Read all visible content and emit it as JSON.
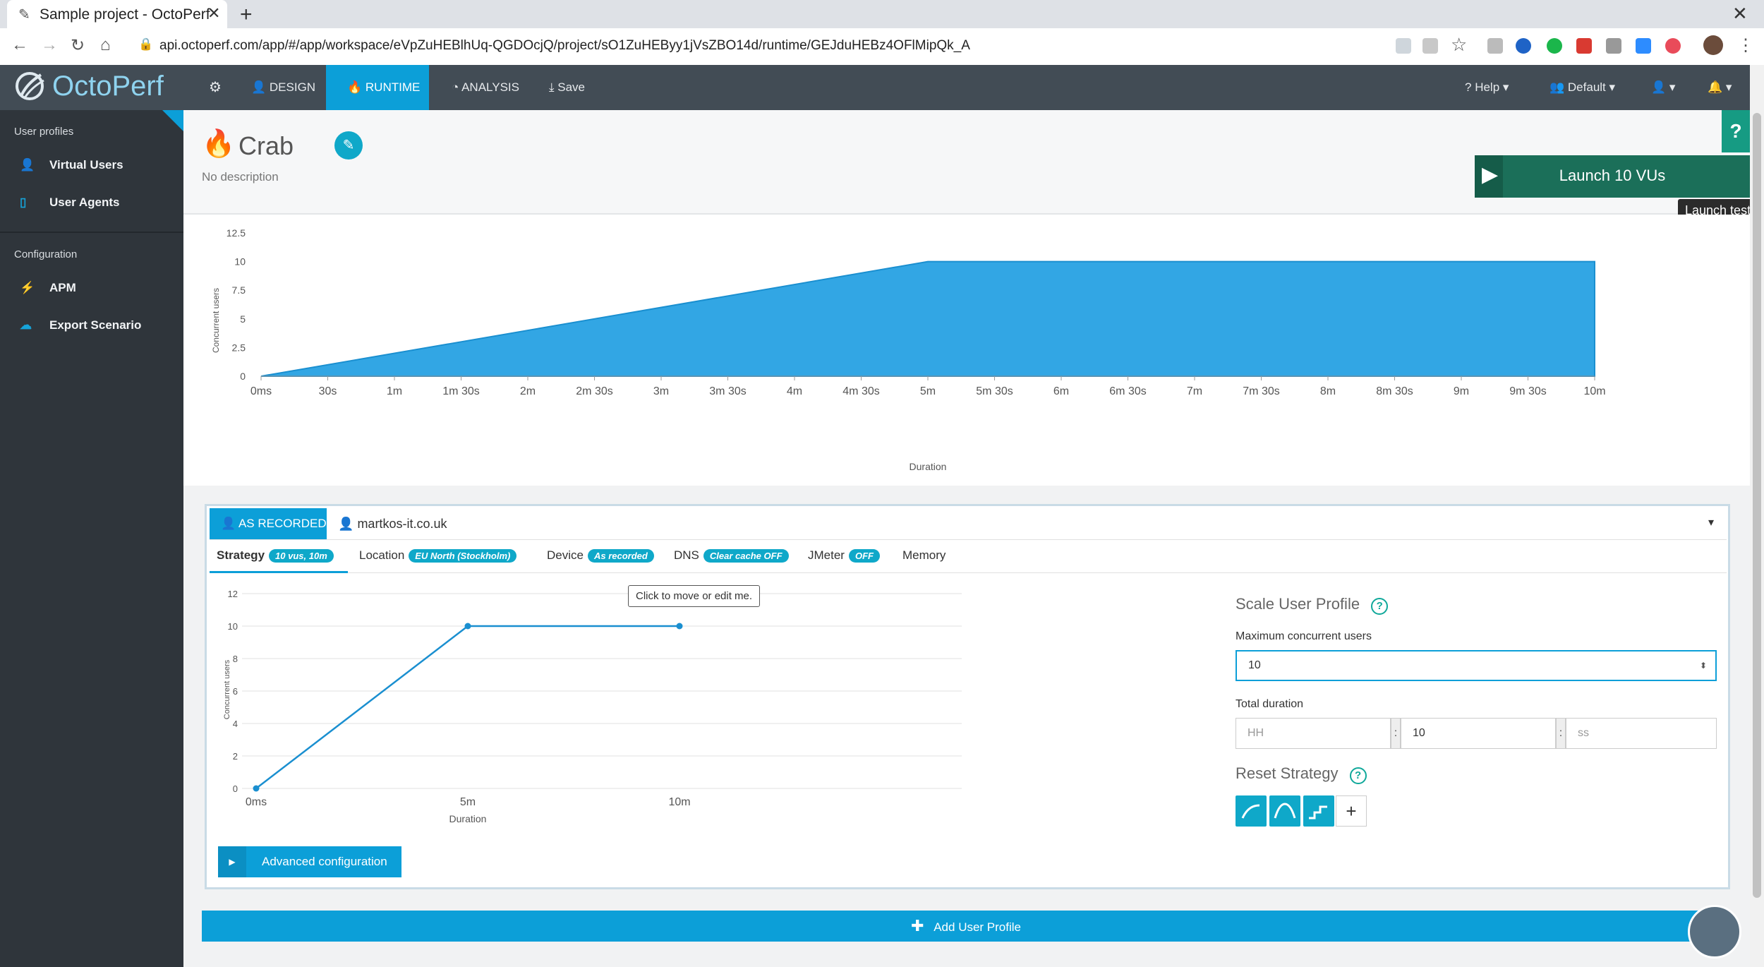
{
  "browser": {
    "tab_title": "Sample project - OctoPerf",
    "url": "api.octoperf.com/app/#/app/workspace/eVpZuHEBlhUq-QGDOcjQ/project/sO1ZuHEByy1jVsZBO14d/runtime/GEJduHEBz4OFlMipQk_A"
  },
  "header": {
    "logo": "OctoPerf",
    "nav": {
      "design": "DESIGN",
      "runtime": "RUNTIME",
      "analysis": "ANALYSIS",
      "save": "Save"
    },
    "right": {
      "help": "Help",
      "workspace": "Default"
    }
  },
  "sidebar": {
    "section1": "User profiles",
    "items1": [
      "Virtual Users",
      "User Agents"
    ],
    "section2": "Configuration",
    "items2": [
      "APM",
      "Export Scenario"
    ]
  },
  "runtime": {
    "name": "Crab",
    "description": "No description",
    "launch_label": "Launch 10 VUs",
    "launch_tooltip": "Launch test",
    "help_icon": "?"
  },
  "chart_top": {
    "ylabel": "Concurrent users",
    "xlabel": "Duration",
    "yticks": [
      "12.5",
      "10",
      "7.5",
      "5",
      "2.5",
      "0"
    ],
    "xticks": [
      "0ms",
      "30s",
      "1m",
      "1m 30s",
      "2m",
      "2m 30s",
      "3m",
      "3m 30s",
      "4m",
      "4m 30s",
      "5m",
      "5m 30s",
      "6m",
      "6m 30s",
      "7m",
      "7m 30s",
      "8m",
      "8m 30s",
      "9m",
      "9m 30s",
      "10m"
    ]
  },
  "profile": {
    "mode": "AS RECORDED",
    "user": "martkos-it.co.uk",
    "tabs": {
      "strategy": "Strategy",
      "strategy_pill": "10 vus, 10m",
      "location": "Location",
      "location_pill": "EU North (Stockholm)",
      "device": "Device",
      "device_pill": "As recorded",
      "dns": "DNS",
      "dns_pill": "Clear cache OFF",
      "jmeter": "JMeter",
      "jmeter_pill": "OFF",
      "memory": "Memory"
    },
    "tooltip": "Click to move or edit me.",
    "advanced": "Advanced configuration",
    "scale_title": "Scale User Profile",
    "max_users_label": "Maximum concurrent users",
    "max_users_value": "10",
    "total_duration_label": "Total duration",
    "hh_placeholder": "HH",
    "mm_value": "10",
    "ss_placeholder": "ss",
    "reset_title": "Reset Strategy",
    "add_profile": "Add User Profile"
  },
  "chart_data": [
    {
      "type": "area",
      "title": "",
      "xlabel": "Duration",
      "ylabel": "Concurrent users",
      "x": [
        "0ms",
        "5m",
        "10m"
      ],
      "series": [
        {
          "values": [
            0,
            10,
            10
          ]
        }
      ],
      "ylim": [
        0,
        12.5
      ],
      "grid": false
    },
    {
      "type": "line",
      "title": "",
      "xlabel": "Duration",
      "ylabel": "Concurrent users",
      "x": [
        "0ms",
        "5m",
        "10m"
      ],
      "series": [
        {
          "values": [
            0,
            10,
            10
          ]
        }
      ],
      "ylim": [
        0,
        12
      ],
      "yticks": [
        "12",
        "10",
        "8",
        "6",
        "4",
        "2",
        "0"
      ],
      "grid": true
    }
  ],
  "colors": {
    "accent": "#0c9fd8",
    "area_fill": "#32a6e4",
    "teal": "#0fa8c9",
    "header_bg": "#424c55",
    "sidebar_bg": "#2f353b",
    "launch_bg": "#1a6b57"
  }
}
